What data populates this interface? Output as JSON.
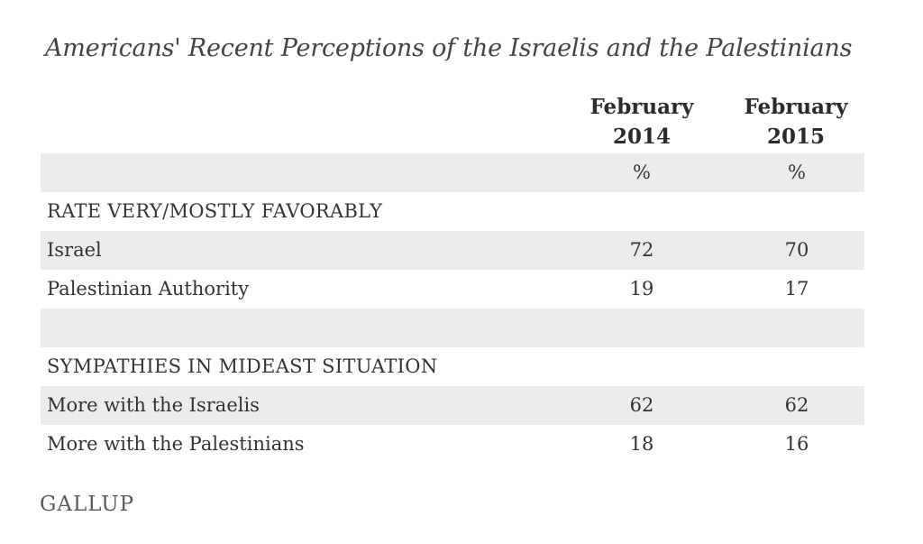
{
  "title": "Americans' Recent Perceptions of the Israelis and the Palestinians",
  "columns": [
    {
      "line1": "February",
      "line2": "2014",
      "unit": "%"
    },
    {
      "line1": "February",
      "line2": "2015",
      "unit": "%"
    }
  ],
  "sections": [
    {
      "heading": "RATE VERY/MOSTLY FAVORABLY",
      "rows": [
        {
          "label": "Israel",
          "v2014": "72",
          "v2015": "70"
        },
        {
          "label": "Palestinian Authority",
          "v2014": "19",
          "v2015": "17"
        }
      ]
    },
    {
      "heading": "SYMPATHIES IN MIDEAST SITUATION",
      "rows": [
        {
          "label": "More with the Israelis",
          "v2014": "62",
          "v2015": "62"
        },
        {
          "label": "More with the Palestinians",
          "v2014": "18",
          "v2015": "16"
        }
      ]
    }
  ],
  "source": "GALLUP",
  "chart_data": {
    "type": "table",
    "title": "Americans' Recent Perceptions of the Israelis and the Palestinians",
    "columns": [
      "February 2014",
      "February 2015"
    ],
    "unit": "%",
    "groups": [
      {
        "name": "RATE VERY/MOSTLY FAVORABLY",
        "rows": [
          {
            "label": "Israel",
            "values": [
              72,
              70
            ]
          },
          {
            "label": "Palestinian Authority",
            "values": [
              19,
              17
            ]
          }
        ]
      },
      {
        "name": "SYMPATHIES IN MIDEAST SITUATION",
        "rows": [
          {
            "label": "More with the Israelis",
            "values": [
              62,
              62
            ]
          },
          {
            "label": "More with the Palestinians",
            "values": [
              18,
              16
            ]
          }
        ]
      }
    ]
  }
}
